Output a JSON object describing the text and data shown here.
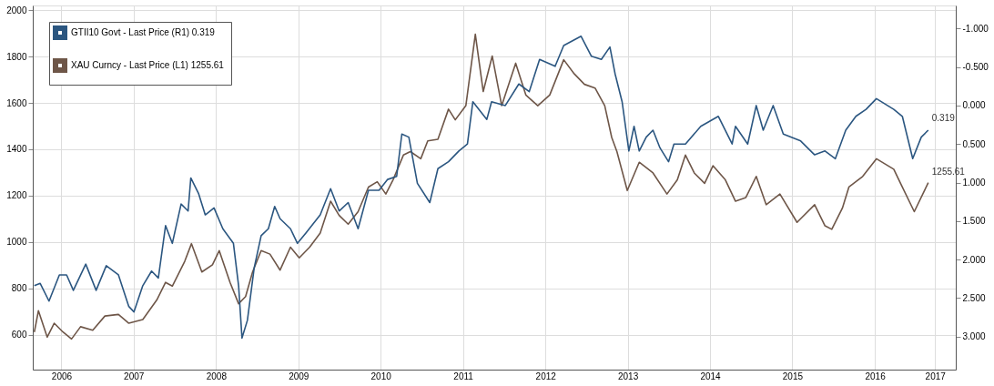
{
  "chart_data": {
    "type": "line",
    "legend": "top left",
    "grid": true,
    "line_style": "solid",
    "xlim": [
      "2006-04-10",
      "2017-06-25"
    ],
    "xticks": [
      {
        "value": "2006-08-15",
        "label": "2006"
      },
      {
        "value": "2007-07-01",
        "label": "2007"
      },
      {
        "value": "2008-07-01",
        "label": "2008"
      },
      {
        "value": "2009-07-01",
        "label": "2009"
      },
      {
        "value": "2010-07-01",
        "label": "2010"
      },
      {
        "value": "2011-07-01",
        "label": "2011"
      },
      {
        "value": "2012-07-01",
        "label": "2012"
      },
      {
        "value": "2013-07-01",
        "label": "2013"
      },
      {
        "value": "2014-07-01",
        "label": "2014"
      },
      {
        "value": "2015-07-01",
        "label": "2015"
      },
      {
        "value": "2016-07-01",
        "label": "2016"
      },
      {
        "value": "2017-03-25",
        "label": "2017"
      }
    ],
    "ylim": [
      450,
      2020
    ],
    "yticks": [
      600,
      800,
      1000,
      1200,
      1400,
      1600,
      1800,
      2000
    ],
    "y2lim": [
      3.43,
      -1.3
    ],
    "y2ticks": [
      {
        "value": -1,
        "label": "-1.000"
      },
      {
        "value": -0.5,
        "label": "-0.500"
      },
      {
        "value": 0,
        "label": "0.000"
      },
      {
        "value": 0.5,
        "label": "0.500"
      },
      {
        "value": 1,
        "label": "1.000"
      },
      {
        "value": 1.5,
        "label": "1.500"
      },
      {
        "value": 2,
        "label": "2.000"
      },
      {
        "value": 2.5,
        "label": "2.500"
      },
      {
        "value": 3,
        "label": "3.000"
      }
    ],
    "annotations": [
      {
        "text": "1255.61",
        "x": "2017-02-23",
        "y": 1256
      },
      {
        "text": "0.319",
        "x": "2017-02-23",
        "y": 1487
      }
    ],
    "series": [
      {
        "name": "GTII10 Govt - Last Price (R1)      0.319",
        "color": "#2b5680",
        "axis": "y2",
        "x": [
          "2006-04-17",
          "2006-05-13",
          "2006-06-21",
          "2006-08-06",
          "2006-09-07",
          "2006-10-07",
          "2006-12-01",
          "2007-01-16",
          "2007-03-02",
          "2007-04-25",
          "2007-06-10",
          "2007-07-03",
          "2007-08-11",
          "2007-09-19",
          "2007-10-19",
          "2007-11-20",
          "2007-12-20",
          "2008-01-28",
          "2008-02-28",
          "2008-03-11",
          "2008-04-14",
          "2008-05-14",
          "2008-06-22",
          "2008-07-31",
          "2008-09-16",
          "2008-10-09",
          "2008-10-24",
          "2008-11-17",
          "2008-12-17",
          "2009-01-17",
          "2009-02-18",
          "2009-03-18",
          "2009-04-11",
          "2009-05-27",
          "2009-06-27",
          "2009-08-05",
          "2009-10-06",
          "2009-11-21",
          "2009-12-29",
          "2010-02-07",
          "2010-03-23",
          "2010-05-08",
          "2010-06-24",
          "2010-08-01",
          "2010-09-10",
          "2010-10-03",
          "2010-11-03",
          "2010-12-11",
          "2011-02-04",
          "2011-03-12",
          "2011-04-28",
          "2011-06-13",
          "2011-07-21",
          "2011-08-14",
          "2011-10-15",
          "2011-11-05",
          "2012-01-05",
          "2012-03-05",
          "2012-04-20",
          "2012-06-05",
          "2012-08-13",
          "2012-09-20",
          "2012-12-06",
          "2013-01-21",
          "2013-03-06",
          "2013-04-13",
          "2013-05-06",
          "2013-06-06",
          "2013-07-06",
          "2013-07-29",
          "2013-08-21",
          "2013-09-21",
          "2013-10-21",
          "2013-11-21",
          "2013-12-29",
          "2014-01-22",
          "2014-03-14",
          "2014-05-21",
          "2014-08-07",
          "2014-10-07",
          "2014-10-22",
          "2014-12-15",
          "2015-01-22",
          "2015-02-22",
          "2015-04-07",
          "2015-05-22",
          "2015-08-07",
          "2015-10-08",
          "2015-11-23",
          "2016-01-08",
          "2016-02-23",
          "2016-04-08",
          "2016-05-23",
          "2016-07-08",
          "2016-09-23",
          "2016-10-31",
          "2016-12-16",
          "2017-01-23",
          "2017-02-23"
        ],
        "values": [
          2.34,
          2.31,
          2.54,
          2.2,
          2.2,
          2.4,
          2.06,
          2.4,
          2.08,
          2.2,
          2.61,
          2.68,
          2.34,
          2.15,
          2.24,
          1.56,
          1.79,
          1.28,
          1.37,
          0.94,
          1.14,
          1.42,
          1.33,
          1.6,
          1.79,
          2.34,
          3.02,
          2.79,
          2.11,
          1.69,
          1.6,
          1.31,
          1.47,
          1.6,
          1.79,
          1.65,
          1.42,
          1.08,
          1.37,
          1.26,
          1.6,
          1.1,
          1.1,
          0.96,
          0.92,
          0.37,
          0.41,
          1.01,
          1.26,
          0.82,
          0.73,
          0.59,
          0.5,
          -0.05,
          0.18,
          -0.05,
          0.0,
          -0.28,
          -0.18,
          -0.6,
          -0.51,
          -0.78,
          -0.9,
          -0.64,
          -0.6,
          -0.76,
          -0.41,
          -0.05,
          0.59,
          0.27,
          0.59,
          0.41,
          0.32,
          0.55,
          0.73,
          0.5,
          0.5,
          0.27,
          0.14,
          0.5,
          0.27,
          0.5,
          0.0,
          0.32,
          0.0,
          0.37,
          0.46,
          0.64,
          0.59,
          0.69,
          0.32,
          0.14,
          0.05,
          -0.09,
          0.05,
          0.14,
          0.69,
          0.41,
          0.32
        ]
      },
      {
        "name": "XAU Curncy - Last Price (L1) 1255.61",
        "color": "#6e5648",
        "x": [
          "2006-04-17",
          "2006-05-05",
          "2006-06-13",
          "2006-07-14",
          "2006-08-22",
          "2006-09-29",
          "2006-11-08",
          "2007-01-01",
          "2007-02-24",
          "2007-04-25",
          "2007-06-10",
          "2007-08-11",
          "2007-10-12",
          "2007-11-20",
          "2007-12-20",
          "2008-02-13",
          "2008-03-14",
          "2008-04-29",
          "2008-06-15",
          "2008-07-15",
          "2008-09-01",
          "2008-10-09",
          "2008-11-09",
          "2008-12-10",
          "2009-01-17",
          "2009-02-25",
          "2009-04-11",
          "2009-05-27",
          "2009-07-05",
          "2009-08-20",
          "2009-10-06",
          "2009-11-21",
          "2009-12-29",
          "2010-02-07",
          "2010-03-23",
          "2010-05-08",
          "2010-06-16",
          "2010-07-24",
          "2010-08-25",
          "2010-10-10",
          "2010-11-10",
          "2010-12-26",
          "2011-01-26",
          "2011-03-12",
          "2011-04-28",
          "2011-05-28",
          "2011-07-14",
          "2011-08-25",
          "2011-09-29",
          "2011-11-08",
          "2011-12-20",
          "2012-02-20",
          "2012-04-05",
          "2012-05-28",
          "2012-07-20",
          "2012-09-20",
          "2012-11-06",
          "2012-12-21",
          "2013-02-06",
          "2013-03-21",
          "2013-04-21",
          "2013-05-14",
          "2013-06-29",
          "2013-08-21",
          "2013-10-21",
          "2013-12-22",
          "2014-02-06",
          "2014-03-14",
          "2014-04-22",
          "2014-06-07",
          "2014-07-14",
          "2014-09-07",
          "2014-10-22",
          "2014-12-07",
          "2015-01-22",
          "2015-03-07",
          "2015-05-07",
          "2015-07-22",
          "2015-10-08",
          "2015-11-23",
          "2015-12-23",
          "2016-02-08",
          "2016-03-08",
          "2016-05-08",
          "2016-07-08",
          "2016-09-23",
          "2016-10-23",
          "2016-12-23",
          "2017-02-23"
        ],
        "values": [
          612,
          704,
          590,
          650,
          612,
          582,
          635,
          620,
          681,
          688,
          650,
          666,
          750,
          826,
          810,
          917,
          993,
          871,
          902,
          963,
          826,
          734,
          765,
          871,
          963,
          948,
          879,
          978,
          932,
          978,
          1039,
          1176,
          1115,
          1077,
          1131,
          1237,
          1260,
          1207,
          1268,
          1375,
          1390,
          1359,
          1436,
          1443,
          1573,
          1527,
          1588,
          1896,
          1649,
          1802,
          1588,
          1771,
          1634,
          1588,
          1634,
          1786,
          1725,
          1680,
          1664,
          1588,
          1451,
          1390,
          1222,
          1344,
          1298,
          1207,
          1268,
          1375,
          1298,
          1253,
          1329,
          1268,
          1176,
          1192,
          1283,
          1161,
          1207,
          1085,
          1161,
          1070,
          1055,
          1146,
          1237,
          1283,
          1359,
          1314,
          1253,
          1131,
          1256
        ]
      }
    ]
  }
}
